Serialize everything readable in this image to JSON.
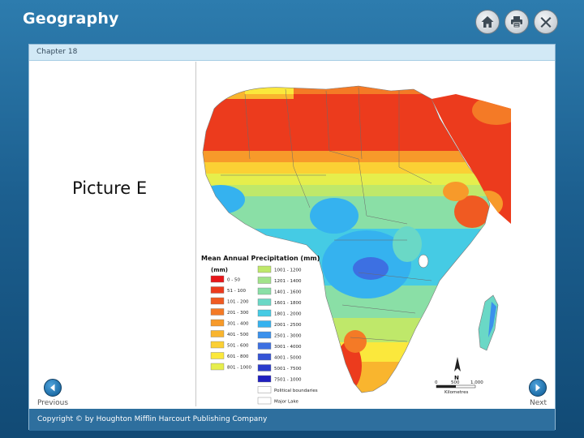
{
  "app": {
    "title": "Geography"
  },
  "toolbar": {
    "home_icon": "home-icon",
    "print_icon": "print-icon",
    "close_icon": "close-icon"
  },
  "content": {
    "chapter": "Chapter 18",
    "picture_label": "Picture E",
    "map": {
      "legend_title": "Mean Annual Precipitation (mm)",
      "legend_unit": "(mm)",
      "legend_left": [
        {
          "label": "0 - 50",
          "color": "#e8161a"
        },
        {
          "label": "51 - 100",
          "color": "#ec3b1d"
        },
        {
          "label": "101 - 200",
          "color": "#f05a22"
        },
        {
          "label": "201 - 300",
          "color": "#f47a26"
        },
        {
          "label": "301 - 400",
          "color": "#f79a2a"
        },
        {
          "label": "401 - 500",
          "color": "#f9b52e"
        },
        {
          "label": "501 - 600",
          "color": "#fbd034"
        },
        {
          "label": "601 - 800",
          "color": "#fbe83c"
        },
        {
          "label": "801 - 1000",
          "color": "#e6ee4c"
        }
      ],
      "legend_right": [
        {
          "label": "1001 - 1200",
          "color": "#bfe86a"
        },
        {
          "label": "1201 - 1400",
          "color": "#a2e38a"
        },
        {
          "label": "1401 - 1600",
          "color": "#8adfa6"
        },
        {
          "label": "1601 - 1800",
          "color": "#6ad8c6"
        },
        {
          "label": "1801 - 2000",
          "color": "#45cbe4"
        },
        {
          "label": "2001 - 2500",
          "color": "#35b2ef"
        },
        {
          "label": "2501 - 3000",
          "color": "#3b91ec"
        },
        {
          "label": "3001 - 4000",
          "color": "#3d70e2"
        },
        {
          "label": "4001 - 5000",
          "color": "#3654d6"
        },
        {
          "label": "5001 - 7500",
          "color": "#2a3bcc"
        },
        {
          "label": "7501 - 1000",
          "color": "#1f1fc0"
        },
        {
          "label": "Political boundaries",
          "color": "#ffffff"
        },
        {
          "label": "Major Lake",
          "color": "#ffffff"
        }
      ],
      "north_label": "N",
      "scale_labels": [
        "0",
        "500",
        "1,000"
      ],
      "scale_unit": "Kilometres"
    }
  },
  "nav": {
    "previous": "Previous",
    "next": "Next"
  },
  "footer": {
    "copyright": "Copyright © by Houghton Mifflin Harcourt Publishing Company"
  }
}
